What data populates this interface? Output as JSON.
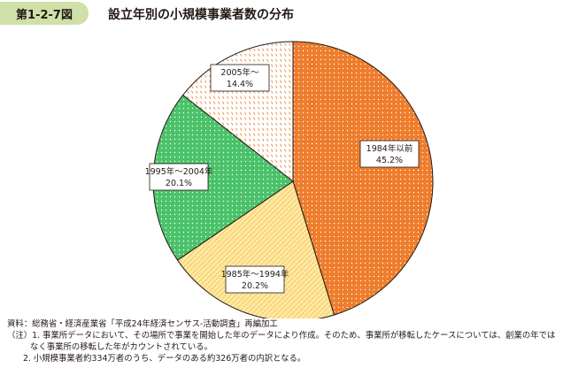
{
  "figure": {
    "number": "第1-2-7図",
    "title": "設立年別の小規模事業者数の分布"
  },
  "chart_data": {
    "type": "pie",
    "unit": "%",
    "start": "12 o'clock, clockwise",
    "slices": [
      {
        "label": "1984年以前",
        "value": 45.2,
        "value_text": "45.2%",
        "color": "#ee7d2c",
        "pattern": "white-dots"
      },
      {
        "label": "1985年～1994年",
        "value": 20.2,
        "value_text": "20.2%",
        "color": "#ffe9a0",
        "pattern": "orange-diagonal-hatch"
      },
      {
        "label": "1995年～2004年",
        "value": 20.1,
        "value_text": "20.1%",
        "color": "#4bc26a",
        "pattern": "white-dots"
      },
      {
        "label": "2005年～",
        "value": 14.4,
        "value_text": "14.4%",
        "color": "#ffffff",
        "pattern": "orange-dashes"
      }
    ]
  },
  "notes": {
    "source": "資料：総務省・経済産業省「平成24年経済センサス‐活動調査」再編加工",
    "note1_line1": "（注）1. 事業所データにおいて、その場所で事業を開始した年のデータにより作成。そのため、事業所が移転したケースについては、創業の年では",
    "note1_line2": "なく事業所の移転した年がカウントされている。",
    "note2": "2. 小規模事業者約334万者のうち、データのある約326万者の内訳となる。"
  }
}
